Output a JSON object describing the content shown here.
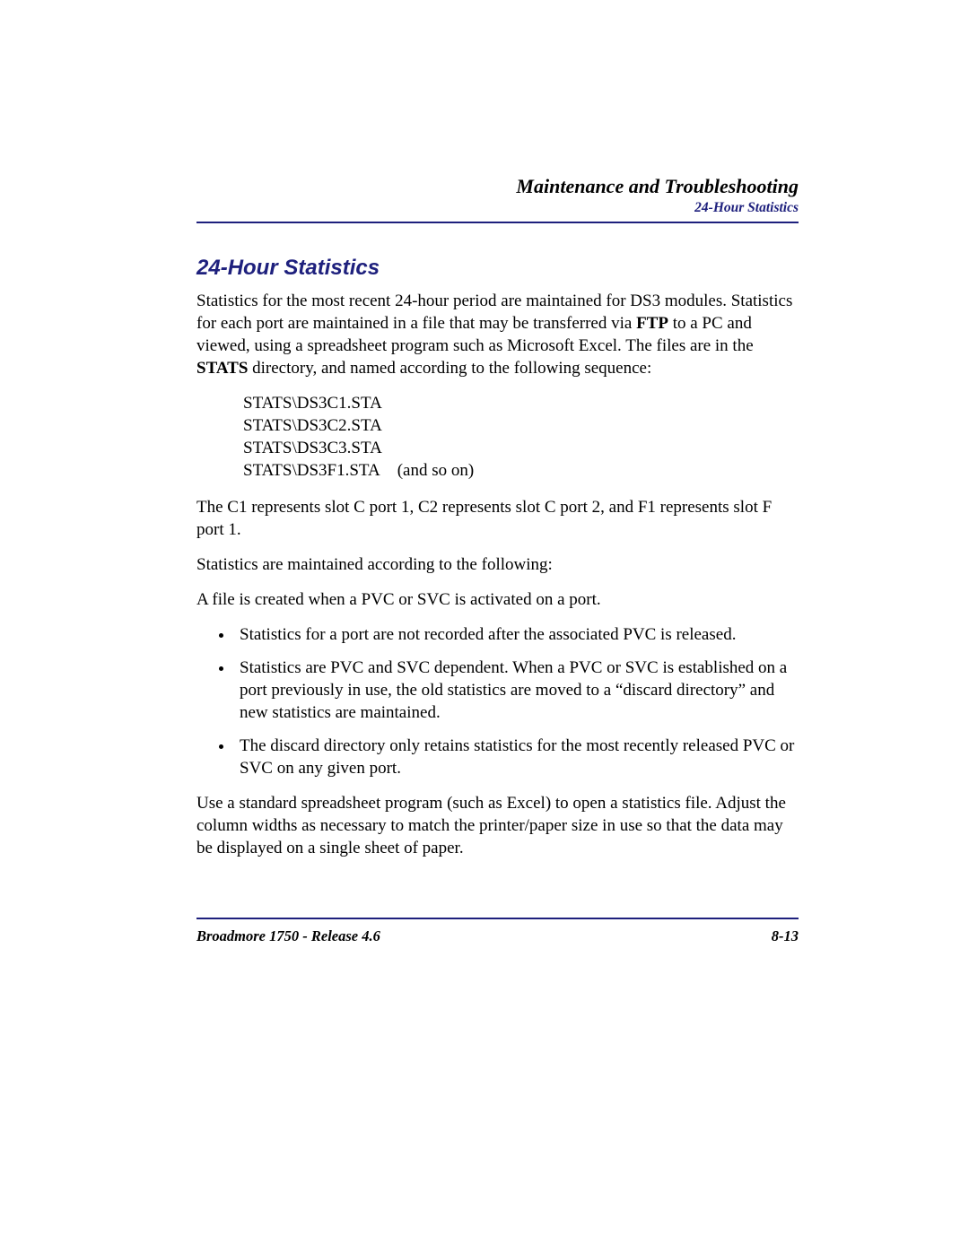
{
  "header": {
    "chapter_title": "Maintenance and Troubleshooting",
    "section_subtitle": "24-Hour Statistics"
  },
  "section": {
    "title": "24-Hour Statistics",
    "para1_pre": "Statistics for the most recent 24-hour period are maintained for DS3 modules. Statistics for each port are maintained in a file that may be transferred via ",
    "para1_bold1": "FTP",
    "para1_mid": " to a PC and viewed, using a spreadsheet program such as Microsoft Excel. The files are in the ",
    "para1_bold2": "STATS",
    "para1_post": " directory, and named according to the following sequence:",
    "stats": {
      "l1": "STATS\\DS3C1.STA",
      "l2": "STATS\\DS3C2.STA",
      "l3": "STATS\\DS3C3.STA",
      "l4": "STATS\\DS3F1.STA (and so on)"
    },
    "para2": "The C1 represents slot C port 1, C2 represents slot C port 2, and F1 represents slot F port 1.",
    "para3": "Statistics are maintained according to the following:",
    "para4": "A file is created when a PVC or SVC is activated on a port.",
    "bullets": {
      "b1": "Statistics for a port are not recorded after the associated PVC is released.",
      "b2": "Statistics are PVC and SVC dependent. When a PVC or SVC is established on a port previously in use, the old statistics are moved to a “discard directory” and new statistics are maintained.",
      "b3": "The discard directory only retains statistics for the most recently released PVC or SVC on any given port."
    },
    "para5": "Use a standard spreadsheet program (such as Excel) to open a statistics file. Adjust the column widths as necessary to match the printer/paper size in use so that the data may be displayed on a single sheet of paper."
  },
  "footer": {
    "left": "Broadmore 1750 - Release 4.6",
    "right": "8-13"
  },
  "colors": {
    "accent": "#1e207d",
    "text": "#000000",
    "background": "#ffffff"
  }
}
